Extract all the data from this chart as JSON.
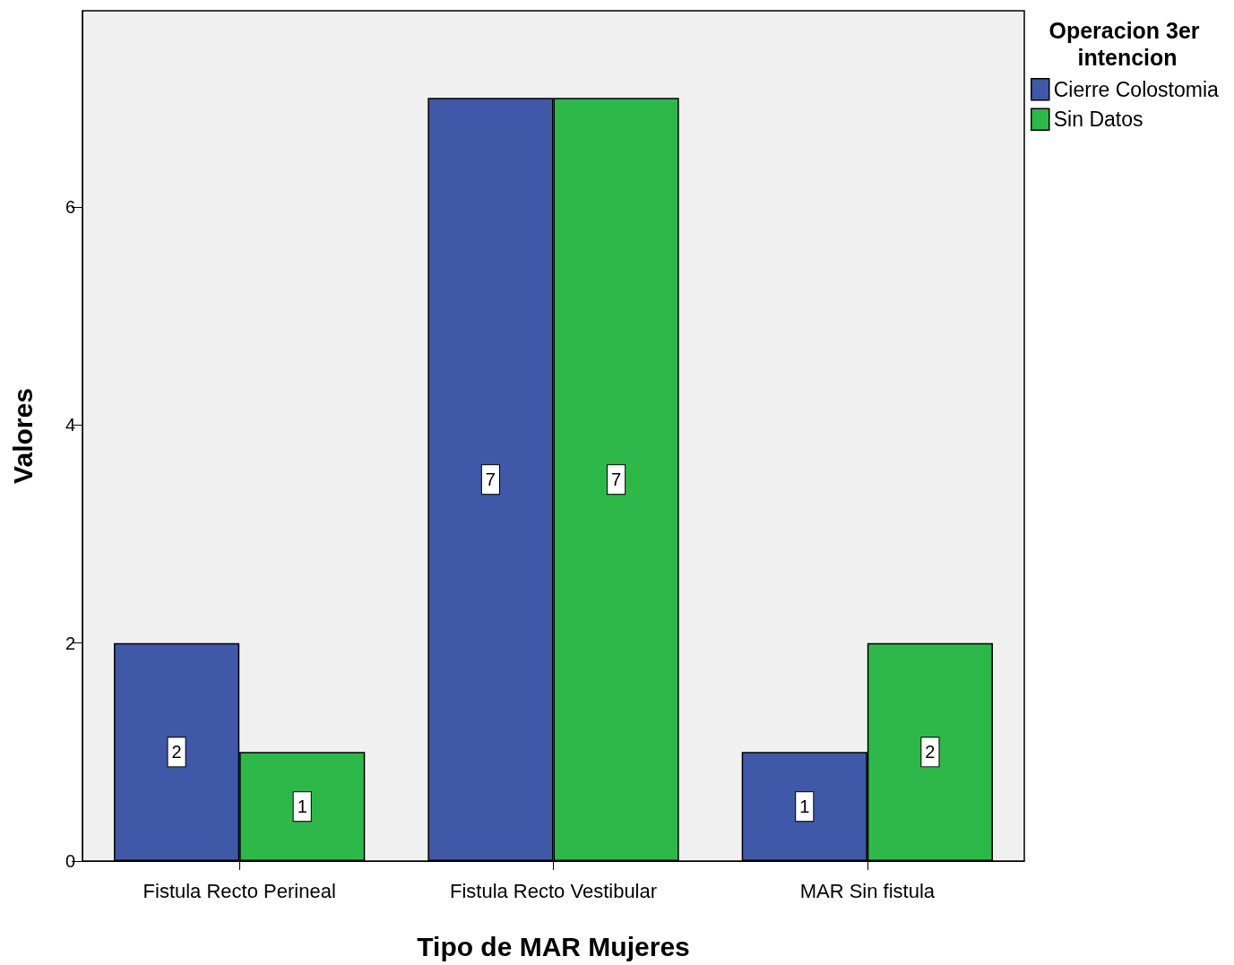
{
  "chart_data": {
    "type": "bar",
    "xlabel": "Tipo de MAR Mujeres",
    "ylabel": "Valores",
    "legend_title": "Operacion 3er intencion",
    "categories": [
      "Fistula Recto Perineal",
      "Fistula Recto Vestibular",
      "MAR Sin fistula"
    ],
    "series": [
      {
        "name": "Cierre Colostomia",
        "color": "#3f58a8",
        "values": [
          2,
          7,
          1
        ]
      },
      {
        "name": "Sin Datos",
        "color": "#2fb84a",
        "values": [
          1,
          7,
          2
        ]
      }
    ],
    "ylim": [
      0,
      7.8
    ],
    "yticks": [
      0,
      2,
      4,
      6
    ],
    "grid": false,
    "legend": "top right",
    "data_labels": true
  }
}
